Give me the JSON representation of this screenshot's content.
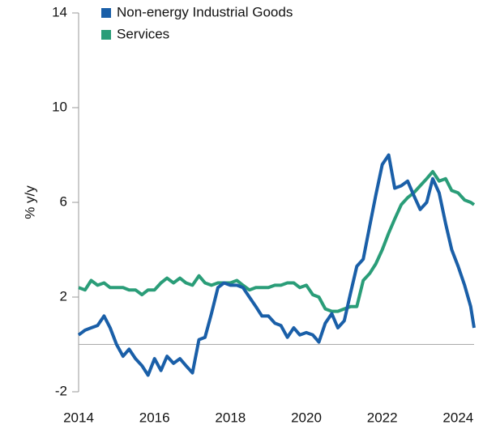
{
  "chart_data": {
    "type": "line",
    "ylabel": "% y/y",
    "x": [
      2014,
      2014.17,
      2014.33,
      2014.5,
      2014.67,
      2014.83,
      2015,
      2015.17,
      2015.33,
      2015.5,
      2015.67,
      2015.83,
      2016,
      2016.17,
      2016.33,
      2016.5,
      2016.67,
      2016.83,
      2017,
      2017.17,
      2017.33,
      2017.5,
      2017.67,
      2017.83,
      2018,
      2018.17,
      2018.33,
      2018.5,
      2018.67,
      2018.83,
      2019,
      2019.17,
      2019.33,
      2019.5,
      2019.67,
      2019.83,
      2020,
      2020.17,
      2020.33,
      2020.5,
      2020.67,
      2020.83,
      2021,
      2021.17,
      2021.33,
      2021.5,
      2021.67,
      2021.83,
      2022,
      2022.17,
      2022.33,
      2022.5,
      2022.67,
      2022.83,
      2023,
      2023.17,
      2023.33,
      2023.5,
      2023.67,
      2023.83,
      2024,
      2024.17,
      2024.33,
      2024.42
    ],
    "series": [
      {
        "name": "Non-energy Industrial Goods",
        "color": "#1a5fa8",
        "values": [
          0.4,
          0.6,
          0.7,
          0.8,
          1.2,
          0.7,
          0.0,
          -0.5,
          -0.2,
          -0.6,
          -0.9,
          -1.3,
          -0.6,
          -1.1,
          -0.5,
          -0.8,
          -0.6,
          -0.9,
          -1.2,
          0.2,
          0.3,
          1.3,
          2.4,
          2.6,
          2.5,
          2.5,
          2.4,
          2.0,
          1.6,
          1.2,
          1.2,
          0.9,
          0.8,
          0.3,
          0.7,
          0.4,
          0.5,
          0.4,
          0.1,
          0.9,
          1.3,
          0.7,
          1.0,
          2.2,
          3.3,
          3.6,
          5.0,
          6.3,
          7.6,
          8.0,
          6.6,
          6.7,
          6.9,
          6.3,
          5.7,
          6.0,
          7.0,
          6.4,
          5.1,
          4.0,
          3.3,
          2.5,
          1.6,
          0.7
        ]
      },
      {
        "name": "Services",
        "color": "#2a9d78",
        "values": [
          2.4,
          2.3,
          2.7,
          2.5,
          2.6,
          2.4,
          2.4,
          2.4,
          2.3,
          2.3,
          2.1,
          2.3,
          2.3,
          2.6,
          2.8,
          2.6,
          2.8,
          2.6,
          2.5,
          2.9,
          2.6,
          2.5,
          2.6,
          2.6,
          2.6,
          2.7,
          2.5,
          2.3,
          2.4,
          2.4,
          2.4,
          2.5,
          2.5,
          2.6,
          2.6,
          2.4,
          2.5,
          2.1,
          2.0,
          1.5,
          1.4,
          1.4,
          1.5,
          1.6,
          1.6,
          2.7,
          3.0,
          3.4,
          4.0,
          4.7,
          5.3,
          5.9,
          6.2,
          6.4,
          6.7,
          7.0,
          7.3,
          6.9,
          7.0,
          6.5,
          6.4,
          6.1,
          6.0,
          5.9
        ]
      }
    ],
    "xlim": [
      2014,
      2024.42
    ],
    "xticks": [
      2014,
      2016,
      2018,
      2020,
      2022,
      2024
    ],
    "ylim": [
      -2,
      14
    ],
    "yticks": [
      14,
      10,
      6,
      2,
      -2
    ],
    "legend": "top-left"
  }
}
